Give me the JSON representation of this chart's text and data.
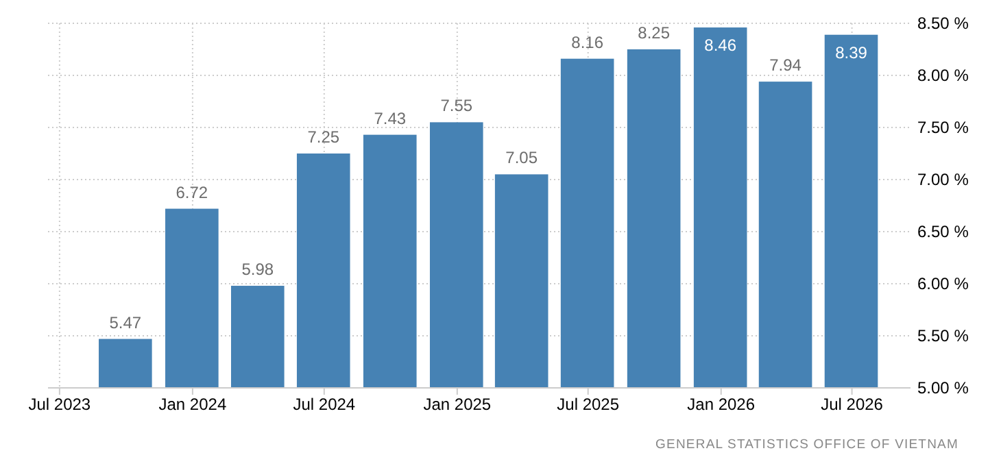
{
  "chart_data": {
    "type": "bar",
    "x": [
      "2023-09-30",
      "2023-12-31",
      "2024-03-31",
      "2024-06-30",
      "2024-09-30",
      "2024-12-31",
      "2025-03-31",
      "2025-06-30",
      "2025-09-30",
      "2025-12-31",
      "2026-03-31",
      "2026-06-30"
    ],
    "values": [
      5.47,
      6.72,
      5.98,
      7.25,
      7.43,
      7.55,
      7.05,
      8.16,
      8.25,
      8.46,
      7.94,
      8.39
    ],
    "color": "#4682b4",
    "data_labels": true,
    "xlim": [
      "2023-06-15",
      "2026-09-20"
    ],
    "xticks": [
      {
        "value": "2023-07-01",
        "label": "Jul 2023"
      },
      {
        "value": "2024-01-01",
        "label": "Jan 2024"
      },
      {
        "value": "2024-07-01",
        "label": "Jul 2024"
      },
      {
        "value": "2025-01-01",
        "label": "Jan 2025"
      },
      {
        "value": "2025-07-01",
        "label": "Jul 2025"
      },
      {
        "value": "2026-01-01",
        "label": "Jan 2026"
      },
      {
        "value": "2026-07-01",
        "label": "Jul 2026"
      }
    ],
    "ylim": [
      5,
      8.5
    ],
    "yticks": [
      {
        "value": 5,
        "label": "5.00 %"
      },
      {
        "value": 5.5,
        "label": "5.50 %"
      },
      {
        "value": 6,
        "label": "6.00 %"
      },
      {
        "value": 6.5,
        "label": "6.50 %"
      },
      {
        "value": 7,
        "label": "7.00 %"
      },
      {
        "value": 7.5,
        "label": "7.50 %"
      },
      {
        "value": 8,
        "label": "8.00 %"
      },
      {
        "value": 8.5,
        "label": "8.50 %"
      }
    ],
    "grid": true,
    "annotations": [
      "GENERAL STATISTICS OFFICE OF VIETNAM"
    ]
  }
}
